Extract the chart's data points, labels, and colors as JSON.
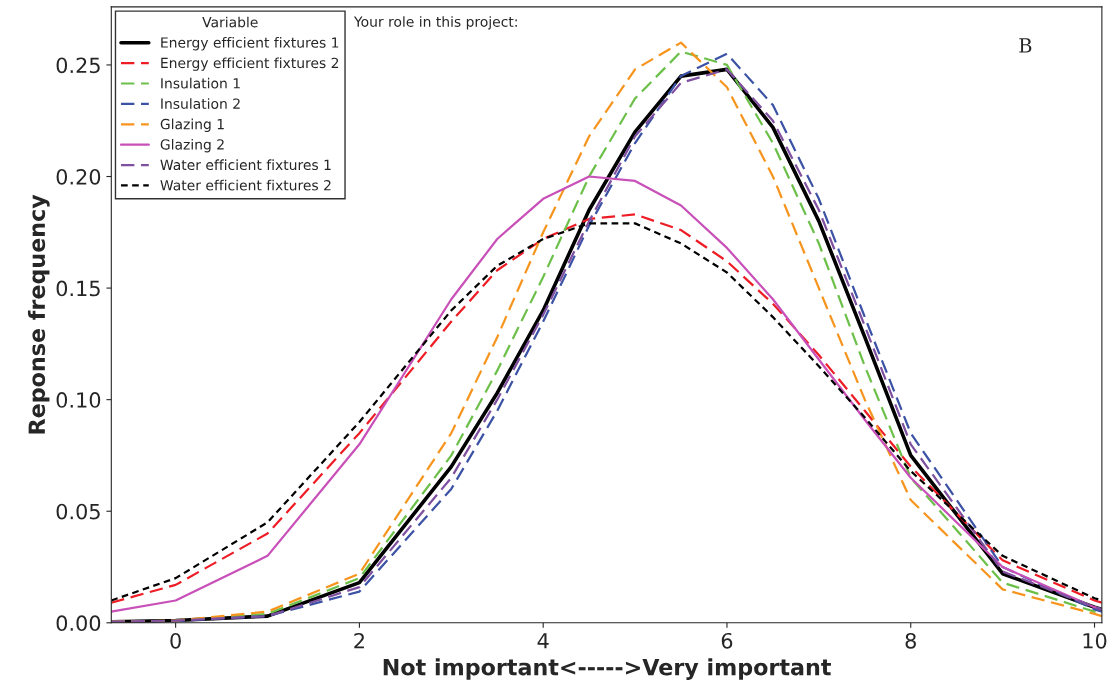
{
  "chart_data": {
    "type": "line",
    "xlabel": "Not important<----->Very important",
    "ylabel": "Reponse frequency",
    "legend_title": "Variable",
    "annotations": [
      "Your role in this project:",
      "B"
    ],
    "x": [
      -0.7,
      0,
      1,
      2,
      3,
      3.5,
      4,
      4.5,
      5,
      5.5,
      6,
      6.5,
      7,
      7.5,
      8,
      9,
      10,
      10.08
    ],
    "series": [
      {
        "name": "Energy efficient fixtures 1",
        "color": "#000000",
        "line_style": "solid",
        "values": [
          0.0005,
          0.001,
          0.003,
          0.018,
          0.07,
          0.103,
          0.14,
          0.185,
          0.22,
          0.245,
          0.248,
          0.222,
          0.18,
          0.128,
          0.075,
          0.022,
          0.007,
          0.006
        ]
      },
      {
        "name": "Energy efficient fixtures 2",
        "color": "#ee1c25",
        "line_style": "dashed",
        "values": [
          0.009,
          0.017,
          0.04,
          0.085,
          0.135,
          0.158,
          0.172,
          0.181,
          0.183,
          0.176,
          0.162,
          0.143,
          0.12,
          0.095,
          0.07,
          0.028,
          0.01,
          0.009
        ]
      },
      {
        "name": "Insulation 1",
        "color": "#6cc04a",
        "line_style": "dashed",
        "values": [
          0.0005,
          0.001,
          0.004,
          0.02,
          0.075,
          0.113,
          0.155,
          0.2,
          0.235,
          0.256,
          0.25,
          0.215,
          0.17,
          0.115,
          0.065,
          0.018,
          0.005,
          0.004
        ]
      },
      {
        "name": "Insulation 2",
        "color": "#3c52a4",
        "line_style": "dashed",
        "values": [
          0.0003,
          0.0008,
          0.003,
          0.014,
          0.06,
          0.095,
          0.135,
          0.178,
          0.215,
          0.245,
          0.255,
          0.232,
          0.19,
          0.137,
          0.085,
          0.025,
          0.006,
          0.005
        ]
      },
      {
        "name": "Glazing 1",
        "color": "#f7941d",
        "line_style": "dashed",
        "values": [
          0.0005,
          0.001,
          0.005,
          0.022,
          0.085,
          0.128,
          0.175,
          0.218,
          0.248,
          0.26,
          0.24,
          0.2,
          0.15,
          0.1,
          0.055,
          0.015,
          0.004,
          0.003
        ]
      },
      {
        "name": "Glazing 2",
        "color": "#c850b8",
        "line_style": "solid",
        "values": [
          0.005,
          0.01,
          0.03,
          0.08,
          0.145,
          0.172,
          0.19,
          0.2,
          0.198,
          0.187,
          0.168,
          0.145,
          0.118,
          0.091,
          0.065,
          0.025,
          0.007,
          0.006
        ]
      },
      {
        "name": "Water efficient fixtures 1",
        "color": "#7f4fa0",
        "line_style": "dashed",
        "values": [
          0.0005,
          0.001,
          0.003,
          0.016,
          0.065,
          0.1,
          0.138,
          0.18,
          0.218,
          0.242,
          0.248,
          0.225,
          0.185,
          0.133,
          0.08,
          0.023,
          0.007,
          0.006
        ]
      },
      {
        "name": "Water efficient fixtures 2",
        "color": "#000000",
        "line_style": "dotted",
        "values": [
          0.01,
          0.02,
          0.045,
          0.09,
          0.14,
          0.16,
          0.172,
          0.179,
          0.179,
          0.17,
          0.157,
          0.137,
          0.115,
          0.092,
          0.068,
          0.03,
          0.011,
          0.01
        ]
      }
    ],
    "xlim": [
      -0.7,
      10.08
    ],
    "ylim": [
      0,
      0.276
    ],
    "xticks": [
      0,
      2,
      4,
      6,
      8,
      10
    ],
    "yticks": [
      {
        "value": 0,
        "label": "0.00"
      },
      {
        "value": 0.05,
        "label": "0.05"
      },
      {
        "value": 0.1,
        "label": "0.10"
      },
      {
        "value": 0.15,
        "label": "0.15"
      },
      {
        "value": 0.2,
        "label": "0.20"
      },
      {
        "value": 0.25,
        "label": "0.25"
      }
    ],
    "grid": false,
    "legend": "top left"
  }
}
